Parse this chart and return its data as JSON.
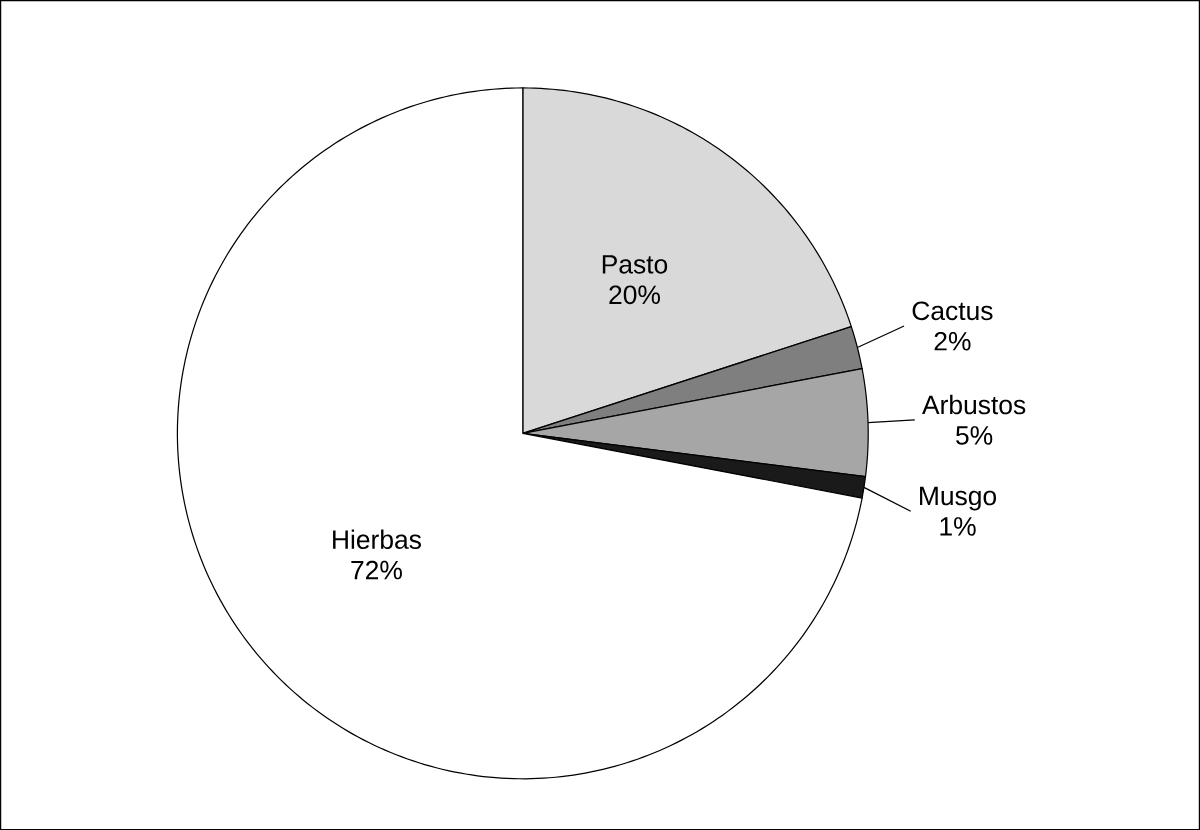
{
  "chart_data": {
    "type": "pie",
    "categories": [
      "Pasto",
      "Cactus",
      "Arbustos",
      "Musgo",
      "Hierbas"
    ],
    "values": [
      20,
      2,
      5,
      1,
      72
    ],
    "colors": [
      "#d9d9d9",
      "#7f7f7f",
      "#a6a6a6",
      "#1a1a1a",
      "#ffffff"
    ],
    "value_labels": [
      "20%",
      "2%",
      "5%",
      "1%",
      "72%"
    ]
  }
}
